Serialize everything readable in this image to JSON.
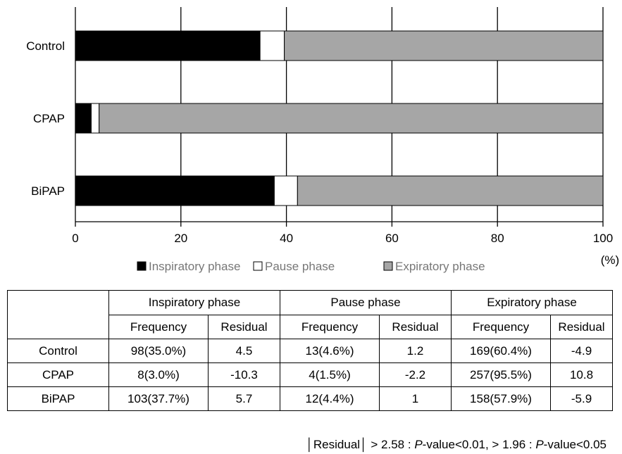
{
  "chart_data": {
    "type": "bar",
    "orientation": "horizontal",
    "stacked": true,
    "categories": [
      "Control",
      "CPAP",
      "BiPAP"
    ],
    "series": [
      {
        "name": "Inspiratory phase",
        "values": [
          35.0,
          3.0,
          37.7
        ],
        "color": "#000000"
      },
      {
        "name": "Pause phase",
        "values": [
          4.6,
          1.5,
          4.4
        ],
        "color": "#ffffff"
      },
      {
        "name": "Expiratory phase",
        "values": [
          60.4,
          95.5,
          57.9
        ],
        "color": "#a6a6a6"
      }
    ],
    "x_ticks": [
      "0",
      "20",
      "40",
      "60",
      "80",
      "100"
    ],
    "xlim": [
      0,
      100
    ],
    "x_unit": "(%)",
    "grid": true,
    "legend_position": "bottom"
  },
  "table": {
    "groups": [
      "Inspiratory phase",
      "Pause phase",
      "Expiratory phase"
    ],
    "subheaders": [
      "Frequency",
      "Residual",
      "Frequency",
      "Residual",
      "Frequency",
      "Residual"
    ],
    "rows": [
      {
        "label": "Control",
        "cells": [
          "98(35.0%)",
          "4.5",
          "13(4.6%)",
          "1.2",
          "169(60.4%)",
          "-4.9"
        ]
      },
      {
        "label": "CPAP",
        "cells": [
          "8(3.0%)",
          "-10.3",
          "4(1.5%)",
          "-2.2",
          "257(95.5%)",
          "10.8"
        ]
      },
      {
        "label": "BiPAP",
        "cells": [
          "103(37.7%)",
          "5.7",
          "12(4.4%)",
          "1",
          "158(57.9%)",
          "-5.9"
        ]
      }
    ]
  },
  "footnote": {
    "part1": "│Residual│ > 2.58 : ",
    "p1": "P",
    "part2": "-value<0.01, > 1.96 : ",
    "p2": "P",
    "part3": "-value<0.05"
  }
}
